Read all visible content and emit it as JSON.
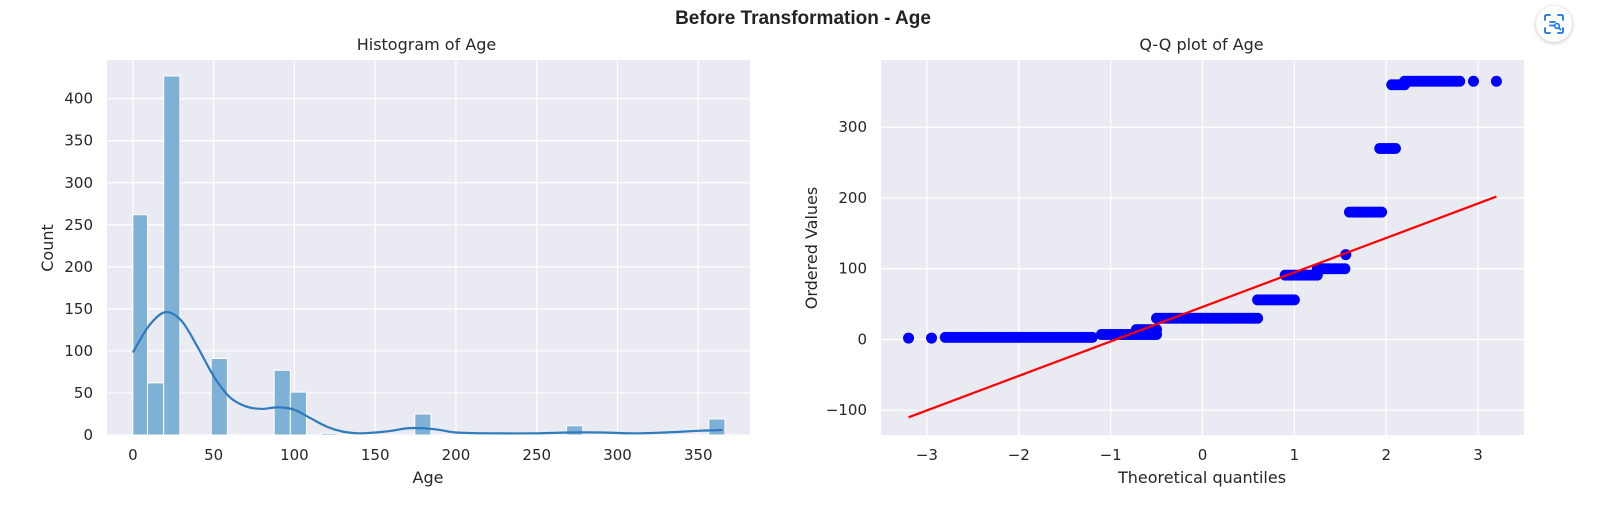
{
  "figure": {
    "title": "Before Transformation - Age",
    "scan_icon": "scan-text-icon"
  },
  "colors": {
    "axes_bg": "#eaeaf2",
    "bar": "#7fb0d6",
    "kde": "#2e7bbd",
    "points": "#0000ff",
    "fit_line": "#ff0000"
  },
  "chart_data": [
    {
      "type": "bar",
      "title": "Histogram of Age",
      "xlabel": "Age",
      "ylabel": "Count",
      "xlim": [
        -16,
        382
      ],
      "ylim": [
        0,
        446
      ],
      "xticks": [
        0,
        50,
        100,
        150,
        200,
        250,
        300,
        350
      ],
      "yticks": [
        0,
        50,
        100,
        150,
        200,
        250,
        300,
        350,
        400
      ],
      "grid": true,
      "bins": [
        {
          "x0": 0.0,
          "x1": 9.1,
          "count": 262
        },
        {
          "x0": 9.1,
          "x1": 19.1,
          "count": 62
        },
        {
          "x0": 19.1,
          "x1": 29.1,
          "count": 427
        },
        {
          "x0": 48.5,
          "x1": 58.5,
          "count": 91
        },
        {
          "x0": 87.5,
          "x1": 97.5,
          "count": 77
        },
        {
          "x0": 97.5,
          "x1": 107.5,
          "count": 51
        },
        {
          "x0": 116.5,
          "x1": 126.5,
          "count": 2
        },
        {
          "x0": 174.5,
          "x1": 184.5,
          "count": 25
        },
        {
          "x0": 268.5,
          "x1": 278.5,
          "count": 11
        },
        {
          "x0": 356.5,
          "x1": 366.5,
          "count": 19
        }
      ],
      "kde": {
        "x": [
          0,
          10,
          20,
          30,
          40,
          50,
          60,
          70,
          80,
          90,
          100,
          110,
          120,
          130,
          140,
          150,
          160,
          170,
          180,
          190,
          200,
          220,
          250,
          270,
          290,
          310,
          330,
          350,
          365
        ],
        "y": [
          98,
          130,
          146,
          136,
          105,
          70,
          45,
          34,
          31,
          33,
          30,
          20,
          10,
          4,
          2,
          3,
          5,
          8,
          8,
          6,
          3,
          2,
          2,
          3,
          3,
          2,
          3,
          5,
          6
        ]
      }
    },
    {
      "type": "scatter",
      "title": "Q-Q plot of Age",
      "xlabel": "Theoretical quantiles",
      "ylabel": "Ordered Values",
      "xlim": [
        -3.5,
        3.5
      ],
      "ylim": [
        -135,
        395
      ],
      "xticks": [
        -3,
        -2,
        -1,
        0,
        1,
        2,
        3
      ],
      "yticks": [
        -100,
        0,
        100,
        200,
        300
      ],
      "grid": true,
      "steps": [
        {
          "x0": -3.2,
          "x1": -3.2,
          "y": 2
        },
        {
          "x0": -2.95,
          "x1": -2.95,
          "y": 2
        },
        {
          "x0": -2.8,
          "x1": -1.2,
          "y": 3
        },
        {
          "x0": -1.1,
          "x1": -0.5,
          "y": 7
        },
        {
          "x0": -0.72,
          "x1": -0.5,
          "y": 14
        },
        {
          "x0": -0.5,
          "x1": 0.6,
          "y": 30
        },
        {
          "x0": 0.6,
          "x1": 1.0,
          "y": 56
        },
        {
          "x0": 0.9,
          "x1": 1.25,
          "y": 91
        },
        {
          "x0": 1.25,
          "x1": 1.55,
          "y": 100
        },
        {
          "x0": 1.56,
          "x1": 1.56,
          "y": 120
        },
        {
          "x0": 1.6,
          "x1": 1.95,
          "y": 180
        },
        {
          "x0": 1.93,
          "x1": 2.1,
          "y": 270
        },
        {
          "x0": 2.06,
          "x1": 2.2,
          "y": 360
        },
        {
          "x0": 2.2,
          "x1": 2.8,
          "y": 365
        },
        {
          "x0": 2.95,
          "x1": 2.95,
          "y": 365
        },
        {
          "x0": 3.2,
          "x1": 3.2,
          "y": 365
        }
      ],
      "fit_line": {
        "x": [
          -3.2,
          3.2
        ],
        "y": [
          -110,
          202
        ]
      }
    }
  ]
}
